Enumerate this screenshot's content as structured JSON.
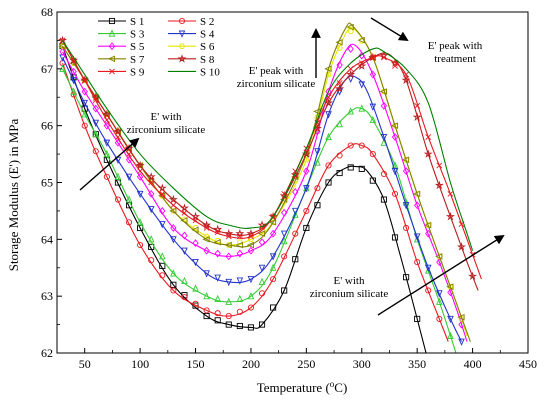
{
  "chart_data": {
    "type": "line",
    "title": "",
    "xlabel": "Temperature (°C)",
    "xlabel_main": "Temperature (",
    "xlabel_deg": "o",
    "xlabel_unit": "C)",
    "ylabel": "Storage Modulus (E') in MPa",
    "xlim": [
      25,
      450
    ],
    "ylim": [
      62,
      68
    ],
    "xticks": [
      50,
      100,
      150,
      200,
      250,
      300,
      350,
      400,
      450
    ],
    "yticks": [
      62,
      63,
      64,
      65,
      66,
      67,
      68
    ],
    "grid": false,
    "legend_position": "top-left",
    "series": [
      {
        "name": "S 1",
        "color": "#000000",
        "marker": "square",
        "x": [
          30,
          50,
          70,
          100,
          130,
          160,
          180,
          200,
          210,
          230,
          250,
          270,
          285,
          295,
          305,
          320,
          335,
          350,
          358
        ],
        "y": [
          67.4,
          66.3,
          65.4,
          64.2,
          63.2,
          62.65,
          62.5,
          62.45,
          62.5,
          63.1,
          64.2,
          65.0,
          65.25,
          65.28,
          65.2,
          64.7,
          63.7,
          62.6,
          62.0
        ]
      },
      {
        "name": "S 2",
        "color": "#e8191f",
        "marker": "circle",
        "x": [
          30,
          50,
          70,
          100,
          130,
          160,
          180,
          200,
          220,
          250,
          270,
          290,
          300,
          310,
          330,
          350,
          370,
          378
        ],
        "y": [
          67.1,
          66.0,
          65.1,
          63.9,
          63.1,
          62.75,
          62.65,
          62.8,
          63.3,
          64.5,
          65.3,
          65.65,
          65.65,
          65.5,
          64.8,
          63.6,
          62.6,
          62.2
        ]
      },
      {
        "name": "S 3",
        "color": "#33cc33",
        "marker": "triangle",
        "x": [
          30,
          50,
          70,
          100,
          130,
          160,
          180,
          200,
          220,
          250,
          270,
          290,
          300,
          310,
          330,
          350,
          370,
          385
        ],
        "y": [
          67.0,
          66.2,
          65.5,
          64.3,
          63.4,
          63.0,
          62.9,
          63.0,
          63.5,
          64.9,
          65.8,
          66.25,
          66.3,
          66.1,
          65.3,
          64.0,
          62.9,
          62.0
        ]
      },
      {
        "name": "S 4",
        "color": "#2233cc",
        "marker": "triangle-down",
        "x": [
          30,
          50,
          70,
          100,
          130,
          160,
          180,
          200,
          220,
          250,
          270,
          285,
          295,
          305,
          320,
          340,
          360,
          380,
          390
        ],
        "y": [
          67.2,
          66.4,
          65.7,
          64.8,
          64.0,
          63.4,
          63.25,
          63.3,
          63.7,
          64.9,
          66.2,
          66.8,
          66.85,
          66.6,
          65.8,
          64.6,
          63.5,
          62.6,
          62.2
        ]
      },
      {
        "name": "S 5",
        "color": "#ff00ff",
        "marker": "diamond",
        "x": [
          30,
          50,
          70,
          100,
          130,
          160,
          180,
          200,
          220,
          250,
          270,
          285,
          295,
          310,
          330,
          350,
          370,
          385,
          395
        ],
        "y": [
          67.3,
          66.6,
          66.0,
          65.1,
          64.2,
          63.8,
          63.7,
          63.8,
          64.1,
          65.2,
          66.6,
          67.3,
          67.4,
          66.9,
          65.8,
          64.6,
          63.6,
          62.8,
          62.2
        ]
      },
      {
        "name": "S 6",
        "color": "#e6e600",
        "marker": "hexagon",
        "x": [
          30,
          50,
          70,
          100,
          130,
          160,
          180,
          200,
          220,
          250,
          270,
          285,
          293,
          310,
          330,
          350,
          370,
          385,
          395
        ],
        "y": [
          67.4,
          66.8,
          66.2,
          65.3,
          64.5,
          64.05,
          63.9,
          64.0,
          64.3,
          65.4,
          66.9,
          67.6,
          67.7,
          67.2,
          66.0,
          64.8,
          63.7,
          62.9,
          62.3
        ]
      },
      {
        "name": "S 7",
        "color": "#808000",
        "marker": "tri-left",
        "x": [
          30,
          50,
          70,
          100,
          130,
          160,
          180,
          200,
          220,
          250,
          270,
          285,
          292,
          310,
          330,
          350,
          370,
          385,
          398
        ],
        "y": [
          67.4,
          66.8,
          66.2,
          65.3,
          64.5,
          64.0,
          63.9,
          63.9,
          64.3,
          65.5,
          67.0,
          67.7,
          67.75,
          67.2,
          66.0,
          64.8,
          63.7,
          62.9,
          62.2
        ]
      },
      {
        "name": "S 8",
        "color": "#b81d1d",
        "marker": "star",
        "x": [
          30,
          50,
          70,
          100,
          130,
          160,
          180,
          200,
          220,
          250,
          270,
          290,
          310,
          325,
          340,
          360,
          380,
          395,
          405
        ],
        "y": [
          67.5,
          66.8,
          66.2,
          65.3,
          64.7,
          64.25,
          64.1,
          64.1,
          64.4,
          65.5,
          66.4,
          66.9,
          67.2,
          67.25,
          66.8,
          65.5,
          64.4,
          63.6,
          63.1
        ]
      },
      {
        "name": "S 9",
        "color": "#e8191f",
        "marker": "x",
        "x": [
          30,
          50,
          70,
          100,
          130,
          160,
          180,
          200,
          220,
          250,
          270,
          290,
          310,
          320,
          340,
          360,
          380,
          395,
          408
        ],
        "y": [
          67.5,
          66.8,
          66.1,
          65.2,
          64.6,
          64.2,
          64.05,
          64.05,
          64.4,
          65.6,
          66.5,
          67.0,
          67.2,
          67.2,
          66.9,
          65.8,
          64.8,
          64.0,
          63.3
        ]
      },
      {
        "name": "S 10",
        "color": "#008000",
        "marker": "none",
        "x": [
          30,
          50,
          70,
          100,
          130,
          160,
          180,
          200,
          220,
          250,
          270,
          290,
          310,
          320,
          340,
          360,
          380,
          395,
          400
        ],
        "y": [
          67.5,
          66.9,
          66.3,
          65.5,
          64.9,
          64.4,
          64.25,
          64.2,
          64.4,
          65.6,
          66.6,
          67.1,
          67.35,
          67.3,
          67.0,
          66.4,
          65.0,
          64.1,
          63.8
        ]
      }
    ],
    "annotations": [
      {
        "label": "E' with zirconium silicate (left)",
        "lines": [
          "E' with",
          "zirconium silicate"
        ]
      },
      {
        "label": "E' peak with zirconium silicate",
        "lines": [
          "E' peak with",
          "zirconium silicate"
        ]
      },
      {
        "label": "E' peak with treatment",
        "lines": [
          "E' peak with",
          "treatment"
        ]
      },
      {
        "label": "E' with zirconium silicate (right)",
        "lines": [
          "E' with",
          "zirconium silicate"
        ]
      }
    ]
  }
}
